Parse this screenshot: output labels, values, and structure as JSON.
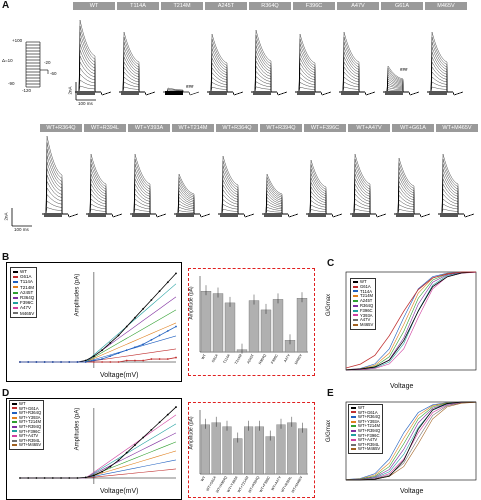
{
  "panels": {
    "A": "A",
    "B": "B",
    "C": "C",
    "D": "D",
    "E": "E"
  },
  "panelA": {
    "row1_headers": [
      "WT",
      "T114A",
      "T214M",
      "A245T",
      "R364Q",
      "F396C",
      "A47V",
      "G61A",
      "M465V"
    ],
    "row2_headers": [
      "WT+R364Q",
      "WT+R394L",
      "WT+Y393A",
      "WT+T214M",
      "WT+R364Q",
      "WT+R394Q",
      "WT+F396C",
      "WT+A47V",
      "WT+G61A",
      "WT+M465V"
    ],
    "protocol": {
      "top": "+100",
      "delta": "Δ=10",
      "low": "-90",
      "bottom": "-120",
      "hold": "-20",
      "tail": "-60"
    },
    "scale_current": "2nA",
    "scale_time": "100 ms",
    "scale_current_row2": "2nA",
    "scale_time_row2": "100 ms",
    "sig_marks": [
      "###",
      "###"
    ]
  },
  "panelB": {
    "legend": [
      "WT",
      "G61A",
      "T114A",
      "T214M",
      "A245T",
      "R364Q",
      "F396C",
      "A47V",
      "M465V"
    ],
    "xlabel": "Voltage(mV)",
    "ylabel": "Amplitudes (pA)",
    "bar_ylabel": "Amplitude (pA)",
    "sig": [
      "***",
      "**",
      "***"
    ]
  },
  "panelC": {
    "legend": [
      "WT",
      "G61A",
      "T114A",
      "T214M",
      "A245T",
      "R364Q",
      "F396C",
      "Y393A",
      "A47V",
      "M465V"
    ],
    "xlabel": "Voltage",
    "ylabel": "G/Gmax"
  },
  "panelD": {
    "legend": [
      "WT",
      "WT+G61A",
      "WT+R364Q",
      "WT+Y393A",
      "WT+T214M",
      "WT+R394Q",
      "WT+F396C",
      "WT+A47V",
      "WT+R394L",
      "WT+M465V"
    ],
    "xlabel": "Voltage(mV)",
    "ylabel": "Amplitudes (pA)",
    "bar_ylabel": "Amplitude (pA)",
    "sig": [
      "*"
    ]
  },
  "panelE": {
    "legend": [
      "WT",
      "WT+G61A",
      "WT+R364Q",
      "WT+Y393A",
      "WT+T214M",
      "WT+R394Q",
      "WT+F396C",
      "WT+A47V",
      "WT+R394L",
      "WT+M465V"
    ],
    "xlabel": "Voltage",
    "ylabel": "G/Gmax"
  },
  "chart_data": [
    {
      "type": "line",
      "panel": "B",
      "x": [
        -90,
        -80,
        -70,
        -60,
        -50,
        -40,
        -30,
        -20,
        -10,
        0,
        10,
        20,
        30,
        40,
        50,
        60,
        70,
        80,
        90,
        100
      ],
      "series_note": "",
      "series": [
        {
          "name": "WT",
          "values": [
            0,
            0,
            0,
            0,
            0,
            0,
            0,
            0,
            0.1,
            0.4,
            0.8,
            1.3,
            1.8,
            2.4,
            3.0,
            3.6,
            4.2,
            4.8,
            5.4,
            6.0
          ]
        },
        {
          "name": "T214M",
          "values": [
            0,
            0,
            0,
            0,
            0,
            0,
            0,
            0,
            0,
            0,
            0,
            0,
            0,
            0.1,
            0.1,
            0.1,
            0.2,
            0.2,
            0.2,
            0.3
          ]
        },
        {
          "name": "A47V",
          "values": [
            0,
            0,
            0,
            0,
            0,
            0,
            0,
            0,
            0,
            0.1,
            0.2,
            0.4,
            0.6,
            0.8,
            1.0,
            1.2,
            1.5,
            1.8,
            2.1,
            2.4
          ]
        }
      ]
    },
    {
      "type": "bar",
      "panel": "B-inset",
      "categories": [
        "WT",
        "G61A",
        "T114A",
        "T214M",
        "A245T",
        "R364Q",
        "F396C",
        "A47V",
        "M465V"
      ],
      "values": [
        5.2,
        5.0,
        4.2,
        0.2,
        4.4,
        3.6,
        4.5,
        1.0,
        4.6
      ]
    },
    {
      "type": "line",
      "panel": "C",
      "ylim": [
        0,
        1
      ],
      "x": [
        -80,
        -60,
        -40,
        -20,
        0,
        20,
        40,
        60,
        80,
        100
      ],
      "series": [
        {
          "name": "WT",
          "values": [
            0,
            0.01,
            0.03,
            0.1,
            0.3,
            0.6,
            0.85,
            0.95,
            0.99,
            1
          ]
        },
        {
          "name": "A47V",
          "values": [
            0.02,
            0.06,
            0.15,
            0.35,
            0.6,
            0.82,
            0.94,
            0.98,
            1,
            1
          ]
        }
      ]
    },
    {
      "type": "line",
      "panel": "D",
      "x": [
        -90,
        -80,
        -70,
        -60,
        -50,
        -40,
        -30,
        -20,
        -10,
        0,
        10,
        20,
        30,
        40,
        50,
        60,
        70,
        80,
        90,
        100
      ],
      "series": [
        {
          "name": "WT",
          "values": [
            0,
            0,
            0,
            0,
            0,
            0,
            0,
            0,
            0.5,
            2,
            5,
            9,
            14,
            20,
            26,
            32,
            38,
            44,
            50,
            56
          ]
        }
      ]
    },
    {
      "type": "bar",
      "panel": "D-inset",
      "categories": [
        "WT",
        "WT+G61A",
        "WT+R364Q",
        "WT+Y393A",
        "WT+T214M",
        "WT+R394Q",
        "WT+F396C",
        "WT+A47V",
        "WT+R394L",
        "WT+M465V"
      ],
      "values": [
        50,
        52,
        48,
        36,
        48,
        48,
        38,
        50,
        52,
        46
      ]
    },
    {
      "type": "line",
      "panel": "E",
      "ylim": [
        0,
        1
      ],
      "x": [
        -80,
        -60,
        -40,
        -20,
        0,
        20,
        40,
        60,
        80,
        100
      ],
      "series": [
        {
          "name": "WT",
          "values": [
            0,
            0,
            0.01,
            0.05,
            0.25,
            0.65,
            0.9,
            0.98,
            1,
            1
          ]
        }
      ]
    }
  ],
  "colors": {
    "grey_header": "#9a9a9a",
    "dashed_box": "#e02020",
    "bar": "#b0b0b0"
  }
}
